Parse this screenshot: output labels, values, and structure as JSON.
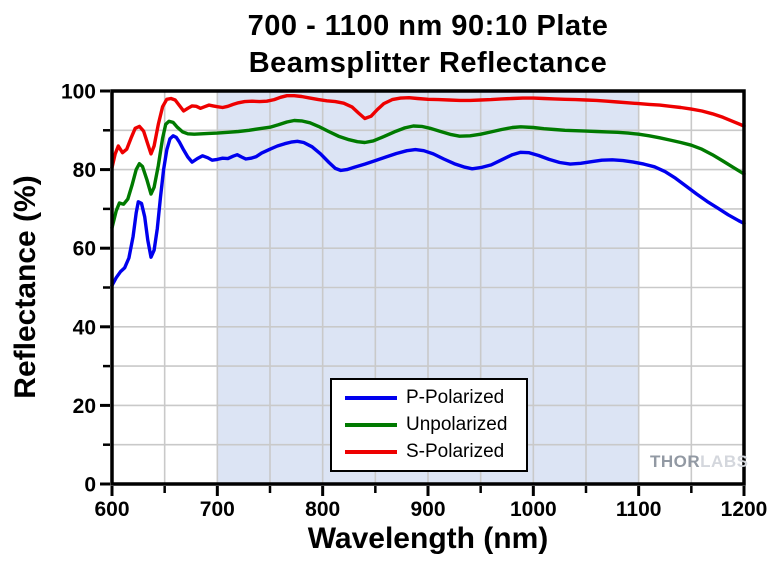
{
  "title": {
    "line1": "700 - 1100 nm 90:10 Plate",
    "line2": "Beamsplitter Reflectance"
  },
  "watermark": {
    "brand_primary": "THOR",
    "brand_secondary": "LABS"
  },
  "chart_data": {
    "type": "line",
    "title": "700 - 1100 nm 90:10 Plate Beamsplitter Reflectance",
    "xlabel": "Wavelength (nm)",
    "ylabel": "Reflectance (%)",
    "xlim": [
      600,
      1200
    ],
    "ylim": [
      0,
      100
    ],
    "x_major_ticks": [
      600,
      700,
      800,
      900,
      1000,
      1100,
      1200
    ],
    "x_minor_tick_step": 50,
    "y_major_ticks": [
      0,
      20,
      40,
      60,
      80,
      100
    ],
    "y_minor_tick_step": 10,
    "grid": {
      "show": true,
      "x_step": 50,
      "y_step": 10,
      "color": "#c9c9c9"
    },
    "shaded_band": {
      "x_start": 700,
      "x_end": 1100,
      "color": "#dce4f4"
    },
    "legend": {
      "position": "bottom-center-inside",
      "entries": [
        "P-Polarized",
        "Unpolarized",
        "S-Polarized"
      ]
    },
    "series": [
      {
        "name": "P-Polarized",
        "color": "#0000ee",
        "points": [
          [
            600,
            50.5
          ],
          [
            604,
            52.5
          ],
          [
            608,
            54
          ],
          [
            612,
            55
          ],
          [
            616,
            57.5
          ],
          [
            620,
            63
          ],
          [
            623,
            69
          ],
          [
            625,
            71.8
          ],
          [
            628,
            71.4
          ],
          [
            631,
            68
          ],
          [
            634,
            62
          ],
          [
            637,
            57.7
          ],
          [
            640,
            59.5
          ],
          [
            643,
            65
          ],
          [
            646,
            73
          ],
          [
            649,
            80
          ],
          [
            652,
            85
          ],
          [
            655,
            87.8
          ],
          [
            658,
            88.6
          ],
          [
            661,
            88.2
          ],
          [
            664,
            87
          ],
          [
            668,
            85
          ],
          [
            672,
            83.2
          ],
          [
            676,
            81.9
          ],
          [
            681,
            82.8
          ],
          [
            686,
            83.5
          ],
          [
            691,
            83
          ],
          [
            695,
            82.4
          ],
          [
            700,
            82.6
          ],
          [
            705,
            82.9
          ],
          [
            710,
            82.8
          ],
          [
            715,
            83.4
          ],
          [
            719,
            83.8
          ],
          [
            723,
            83.2
          ],
          [
            727,
            82.7
          ],
          [
            732,
            82.9
          ],
          [
            737,
            83.3
          ],
          [
            742,
            84.2
          ],
          [
            750,
            85.2
          ],
          [
            757,
            86
          ],
          [
            764,
            86.6
          ],
          [
            770,
            87
          ],
          [
            776,
            87.2
          ],
          [
            782,
            86.9
          ],
          [
            790,
            85.8
          ],
          [
            798,
            84
          ],
          [
            806,
            81.8
          ],
          [
            812,
            80.3
          ],
          [
            817,
            79.8
          ],
          [
            823,
            80
          ],
          [
            830,
            80.6
          ],
          [
            840,
            81.4
          ],
          [
            850,
            82.3
          ],
          [
            860,
            83.2
          ],
          [
            870,
            84.1
          ],
          [
            880,
            84.8
          ],
          [
            888,
            85.1
          ],
          [
            896,
            84.8
          ],
          [
            905,
            84
          ],
          [
            915,
            82.7
          ],
          [
            925,
            81.5
          ],
          [
            935,
            80.6
          ],
          [
            942,
            80.2
          ],
          [
            950,
            80.5
          ],
          [
            960,
            81.2
          ],
          [
            970,
            82.5
          ],
          [
            980,
            83.8
          ],
          [
            988,
            84.4
          ],
          [
            996,
            84.3
          ],
          [
            1005,
            83.6
          ],
          [
            1015,
            82.6
          ],
          [
            1025,
            81.8
          ],
          [
            1035,
            81.4
          ],
          [
            1045,
            81.6
          ],
          [
            1055,
            82
          ],
          [
            1065,
            82.4
          ],
          [
            1075,
            82.5
          ],
          [
            1085,
            82.3
          ],
          [
            1095,
            81.9
          ],
          [
            1105,
            81.4
          ],
          [
            1115,
            80.7
          ],
          [
            1125,
            79.5
          ],
          [
            1135,
            77.8
          ],
          [
            1145,
            75.8
          ],
          [
            1155,
            73.8
          ],
          [
            1165,
            71.9
          ],
          [
            1175,
            70.2
          ],
          [
            1185,
            68.5
          ],
          [
            1195,
            67
          ],
          [
            1200,
            66.3
          ]
        ]
      },
      {
        "name": "Unpolarized",
        "color": "#007a00",
        "points": [
          [
            600,
            65.2
          ],
          [
            604,
            69.5
          ],
          [
            607,
            71.5
          ],
          [
            611,
            71.2
          ],
          [
            615,
            72.5
          ],
          [
            619,
            76
          ],
          [
            623,
            80
          ],
          [
            626,
            81.5
          ],
          [
            629,
            80.8
          ],
          [
            633,
            77.5
          ],
          [
            637,
            73.8
          ],
          [
            640,
            75.5
          ],
          [
            644,
            81
          ],
          [
            648,
            88
          ],
          [
            651,
            91.5
          ],
          [
            654,
            92.3
          ],
          [
            658,
            92
          ],
          [
            662,
            90.8
          ],
          [
            667,
            89.6
          ],
          [
            672,
            89.1
          ],
          [
            678,
            89
          ],
          [
            685,
            89.1
          ],
          [
            692,
            89.2
          ],
          [
            700,
            89.3
          ],
          [
            710,
            89.5
          ],
          [
            720,
            89.7
          ],
          [
            730,
            90
          ],
          [
            740,
            90.4
          ],
          [
            750,
            90.8
          ],
          [
            758,
            91.4
          ],
          [
            766,
            92.1
          ],
          [
            773,
            92.5
          ],
          [
            780,
            92.4
          ],
          [
            788,
            91.9
          ],
          [
            796,
            91
          ],
          [
            805,
            89.8
          ],
          [
            815,
            88.5
          ],
          [
            825,
            87.6
          ],
          [
            833,
            87.1
          ],
          [
            840,
            86.9
          ],
          [
            848,
            87.3
          ],
          [
            858,
            88.4
          ],
          [
            868,
            89.6
          ],
          [
            878,
            90.6
          ],
          [
            886,
            91.1
          ],
          [
            894,
            91
          ],
          [
            902,
            90.5
          ],
          [
            912,
            89.7
          ],
          [
            922,
            88.9
          ],
          [
            930,
            88.5
          ],
          [
            940,
            88.6
          ],
          [
            950,
            89
          ],
          [
            960,
            89.6
          ],
          [
            970,
            90.2
          ],
          [
            980,
            90.7
          ],
          [
            988,
            90.9
          ],
          [
            1000,
            90.7
          ],
          [
            1010,
            90.4
          ],
          [
            1020,
            90.2
          ],
          [
            1030,
            90
          ],
          [
            1040,
            89.9
          ],
          [
            1050,
            89.8
          ],
          [
            1060,
            89.7
          ],
          [
            1070,
            89.6
          ],
          [
            1080,
            89.5
          ],
          [
            1090,
            89.3
          ],
          [
            1100,
            89
          ],
          [
            1110,
            88.6
          ],
          [
            1120,
            88.1
          ],
          [
            1130,
            87.5
          ],
          [
            1140,
            86.9
          ],
          [
            1150,
            86.2
          ],
          [
            1160,
            85.2
          ],
          [
            1170,
            83.8
          ],
          [
            1180,
            82.2
          ],
          [
            1190,
            80.5
          ],
          [
            1200,
            78.9
          ]
        ]
      },
      {
        "name": "S-Polarized",
        "color": "#ee0000",
        "points": [
          [
            600,
            80.5
          ],
          [
            603,
            84
          ],
          [
            606,
            86
          ],
          [
            610,
            84.3
          ],
          [
            614,
            85.2
          ],
          [
            618,
            88
          ],
          [
            622,
            90.5
          ],
          [
            626,
            91
          ],
          [
            630,
            89.8
          ],
          [
            634,
            86.5
          ],
          [
            637,
            84
          ],
          [
            640,
            86
          ],
          [
            644,
            91.5
          ],
          [
            648,
            96
          ],
          [
            652,
            97.9
          ],
          [
            656,
            98.1
          ],
          [
            660,
            97.7
          ],
          [
            664,
            96.3
          ],
          [
            668,
            94.9
          ],
          [
            672,
            95.6
          ],
          [
            676,
            96.2
          ],
          [
            680,
            96.1
          ],
          [
            684,
            95.6
          ],
          [
            688,
            96
          ],
          [
            692,
            96.4
          ],
          [
            696,
            96.2
          ],
          [
            700,
            96
          ],
          [
            705,
            95.8
          ],
          [
            710,
            96.1
          ],
          [
            715,
            96.6
          ],
          [
            720,
            97
          ],
          [
            726,
            97.3
          ],
          [
            733,
            97.4
          ],
          [
            740,
            97.3
          ],
          [
            747,
            97.4
          ],
          [
            754,
            97.8
          ],
          [
            760,
            98.4
          ],
          [
            766,
            98.8
          ],
          [
            773,
            98.8
          ],
          [
            780,
            98.6
          ],
          [
            788,
            98.2
          ],
          [
            796,
            97.8
          ],
          [
            804,
            97.5
          ],
          [
            812,
            97.3
          ],
          [
            820,
            96.9
          ],
          [
            828,
            95.9
          ],
          [
            834,
            94.4
          ],
          [
            840,
            93
          ],
          [
            846,
            93.6
          ],
          [
            852,
            95.3
          ],
          [
            858,
            96.8
          ],
          [
            866,
            97.8
          ],
          [
            874,
            98.2
          ],
          [
            882,
            98.3
          ],
          [
            890,
            98.1
          ],
          [
            900,
            97.9
          ],
          [
            910,
            97.8
          ],
          [
            920,
            97.7
          ],
          [
            930,
            97.6
          ],
          [
            940,
            97.6
          ],
          [
            950,
            97.7
          ],
          [
            960,
            97.8
          ],
          [
            970,
            98
          ],
          [
            980,
            98.1
          ],
          [
            990,
            98.2
          ],
          [
            1000,
            98.2
          ],
          [
            1010,
            98.1
          ],
          [
            1020,
            98
          ],
          [
            1030,
            97.9
          ],
          [
            1040,
            97.8
          ],
          [
            1050,
            97.7
          ],
          [
            1060,
            97.6
          ],
          [
            1070,
            97.4
          ],
          [
            1080,
            97.2
          ],
          [
            1090,
            97
          ],
          [
            1100,
            96.8
          ],
          [
            1110,
            96.6
          ],
          [
            1120,
            96.4
          ],
          [
            1130,
            96.1
          ],
          [
            1140,
            95.8
          ],
          [
            1150,
            95.4
          ],
          [
            1160,
            94.9
          ],
          [
            1170,
            94.2
          ],
          [
            1180,
            93.3
          ],
          [
            1190,
            92.2
          ],
          [
            1200,
            91.1
          ]
        ]
      }
    ]
  }
}
